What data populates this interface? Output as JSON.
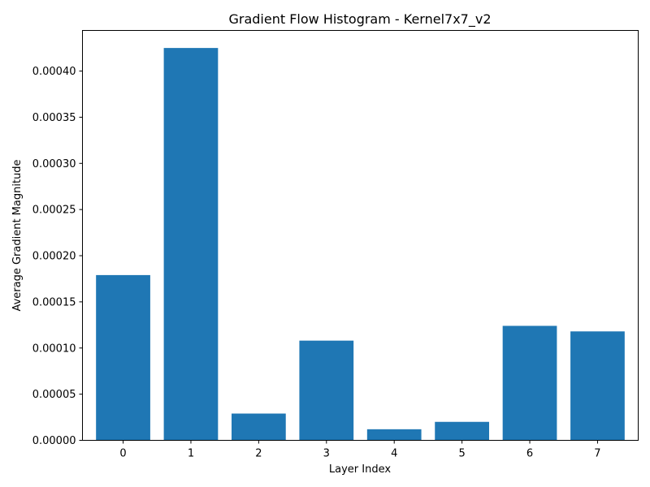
{
  "chart_data": {
    "type": "bar",
    "title": "Gradient Flow Histogram - Kernel7x7_v2",
    "xlabel": "Layer Index",
    "ylabel": "Average Gradient Magnitude",
    "categories": [
      "0",
      "1",
      "2",
      "3",
      "4",
      "5",
      "6",
      "7"
    ],
    "values": [
      0.000179,
      0.000425,
      2.9e-05,
      0.000108,
      1.2e-05,
      2e-05,
      0.000124,
      0.000118
    ],
    "ylim": [
      0,
      0.000444
    ],
    "yticks": [
      0.0,
      5e-05,
      0.0001,
      0.00015,
      0.0002,
      0.00025,
      0.0003,
      0.00035,
      0.0004
    ],
    "ytick_labels": [
      "0.00000",
      "0.00005",
      "0.00010",
      "0.00015",
      "0.00020",
      "0.00025",
      "0.00030",
      "0.00035",
      "0.00040"
    ],
    "grid": false,
    "legend": "none",
    "bar_color": "#1f77b4"
  }
}
